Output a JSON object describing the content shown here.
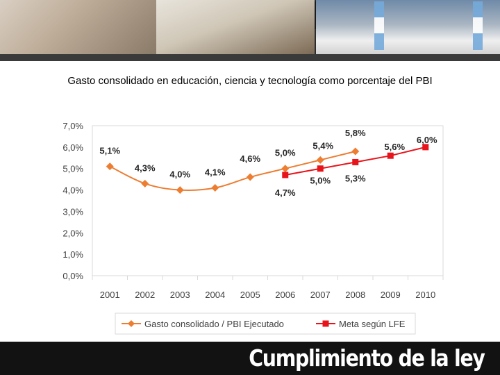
{
  "slide": {
    "title": "Gasto consolidado en educación, ciencia y tecnología como porcentaje del PBI",
    "footer": "Cumplimiento de la ley"
  },
  "chart_data": {
    "type": "line",
    "title": "Gasto consolidado en educación, ciencia y tecnología como porcentaje del PBI",
    "categories": [
      "2001",
      "2002",
      "2003",
      "2004",
      "2005",
      "2006",
      "2007",
      "2008",
      "2009",
      "2010"
    ],
    "ylim": [
      0,
      7
    ],
    "yticks": [
      0,
      1,
      2,
      3,
      4,
      5,
      6,
      7
    ],
    "ytick_labels": [
      "0,0%",
      "1,0%",
      "2,0%",
      "3,0%",
      "4,0%",
      "5,0%",
      "6,0%",
      "7,0%"
    ],
    "grid": false,
    "legend_position": "bottom",
    "series": [
      {
        "name": "Gasto consolidado / PBI Ejecutado",
        "color": "#ed7d31",
        "marker": "diamond",
        "smooth": true,
        "values": [
          5.1,
          4.3,
          4.0,
          4.1,
          4.6,
          5.0,
          5.4,
          5.8,
          null,
          null
        ],
        "labels": [
          "5,1%",
          "4,3%",
          "4,0%",
          "4,1%",
          "4,6%",
          "5,0%",
          "5,4%",
          "5,8%",
          null,
          null
        ]
      },
      {
        "name": "Meta según LFE",
        "color": "#e8141b",
        "marker": "square",
        "smooth": false,
        "values": [
          null,
          null,
          null,
          null,
          null,
          4.7,
          5.0,
          5.3,
          5.6,
          6.0
        ],
        "labels": [
          null,
          null,
          null,
          null,
          null,
          "4,7%",
          "5,0%",
          "5,3%",
          "5,6%",
          "6,0%"
        ]
      }
    ]
  }
}
